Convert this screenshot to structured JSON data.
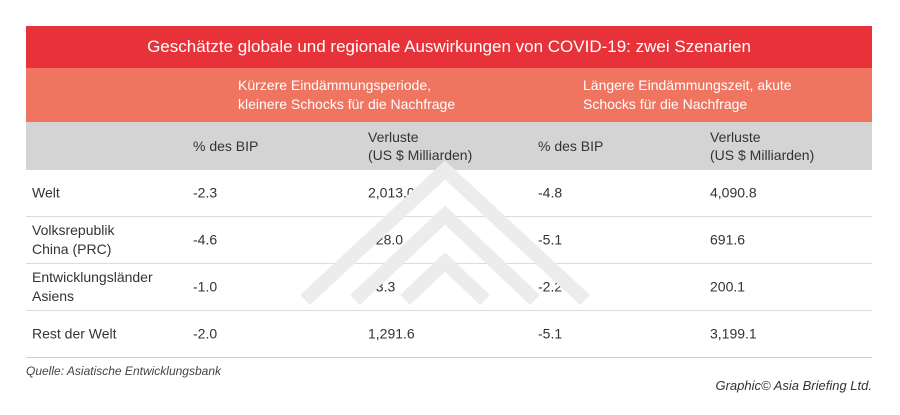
{
  "title": "Geschätzte globale und regionale Auswirkungen von COVID-19: zwei Szenarien",
  "scenarios": [
    {
      "line1": "Kürzere Eindämmungsperiode,",
      "line2": "kleinere Schocks  für die Nachfrage"
    },
    {
      "line1": "Längere Eindämmungszeit, akute",
      "line2": "Schocks für die Nachfrage"
    }
  ],
  "columns": {
    "pct_label": "% des BIP",
    "loss_line1": "Verluste",
    "loss_line2": "(US $ Milliarden)"
  },
  "rows": [
    {
      "region_line1": "Welt",
      "region_line2": "",
      "pct1": "-2.3",
      "loss1": "2,013.0",
      "pct2": "-4.8",
      "loss2": "4,090.8"
    },
    {
      "region_line1": "Volksrepublik",
      "region_line2": "China (PRC)",
      "pct1": "-4.6",
      "loss1": "628.0",
      "pct2": "-5.1",
      "loss2": "691.6"
    },
    {
      "region_line1": "Entwicklungsländer",
      "region_line2": "Asiens",
      "pct1": "-1.0",
      "loss1": "93.3",
      "pct2": "-2.2",
      "loss2": "200.1"
    },
    {
      "region_line1": "Rest der Welt",
      "region_line2": "",
      "pct1": "-2.0",
      "loss1": "1,291.6",
      "pct2": "-5.1",
      "loss2": "3,199.1"
    }
  ],
  "source": "Quelle: Asiatische Entwicklungsbank",
  "credit": "Graphic© Asia Briefing Ltd.",
  "colors": {
    "title_bg": "#e8323a",
    "scenario_bg": "#ef7560",
    "header_bg": "#d4d4d4"
  },
  "watermark_icon": "asia-briefing-logo"
}
